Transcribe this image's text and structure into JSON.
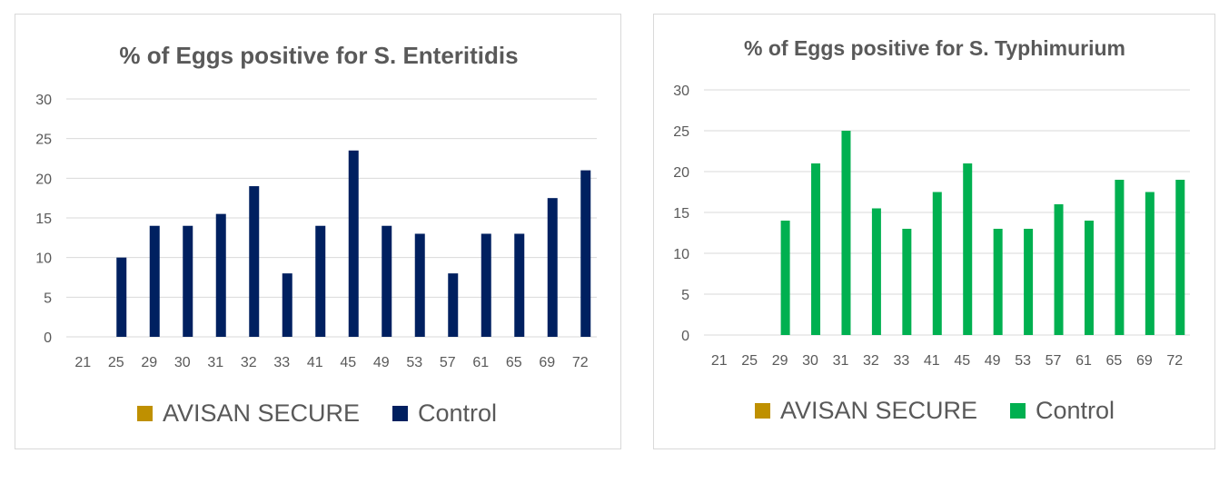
{
  "chart_data": [
    {
      "type": "bar",
      "title": "% of Eggs positive for S. Enteritidis",
      "categories": [
        "21",
        "25",
        "29",
        "30",
        "31",
        "32",
        "33",
        "41",
        "45",
        "49",
        "53",
        "57",
        "61",
        "65",
        "69",
        "72"
      ],
      "series": [
        {
          "name": "AVISAN SECURE",
          "color": "#bf9000",
          "values": [
            0,
            0,
            0,
            0,
            0,
            0,
            0,
            0,
            0,
            0,
            0,
            0,
            0,
            0,
            0,
            0
          ]
        },
        {
          "name": "Control",
          "color": "#002060",
          "values": [
            0,
            10,
            14,
            14,
            15.5,
            19,
            8,
            14,
            23.5,
            14,
            13,
            8,
            13,
            13,
            17.5,
            21
          ]
        }
      ],
      "ylim": [
        0,
        30
      ],
      "yticks": [
        0,
        5,
        10,
        15,
        20,
        25,
        30
      ],
      "grid": true,
      "legend": "bottom"
    },
    {
      "type": "bar",
      "title": "% of Eggs positive for S. Typhimurium",
      "categories": [
        "21",
        "25",
        "29",
        "30",
        "31",
        "32",
        "33",
        "41",
        "45",
        "49",
        "53",
        "57",
        "61",
        "65",
        "69",
        "72"
      ],
      "series": [
        {
          "name": "AVISAN SECURE",
          "color": "#bf9000",
          "values": [
            0,
            0,
            0,
            0,
            0,
            0,
            0,
            0,
            0,
            0,
            0,
            0,
            0,
            0,
            0,
            0
          ]
        },
        {
          "name": "Control",
          "color": "#00b050",
          "values": [
            0,
            0,
            14,
            21,
            25,
            15.5,
            13,
            17.5,
            21,
            13,
            13,
            16,
            14,
            19,
            17.5,
            19
          ]
        }
      ],
      "ylim": [
        0,
        30
      ],
      "yticks": [
        0,
        5,
        10,
        15,
        20,
        25,
        30
      ],
      "grid": true,
      "legend": "bottom"
    }
  ]
}
